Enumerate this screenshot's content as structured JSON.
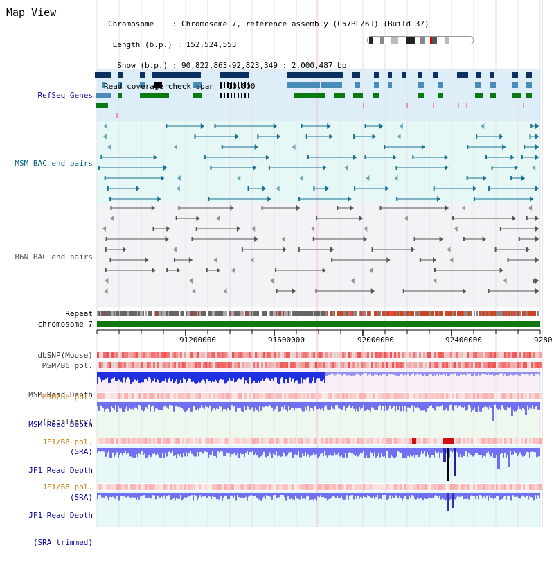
{
  "title": "Map View",
  "info": {
    "chromosome": "Chromosome    : Chromosome 7, reference assembly (C57BL/6J) (Build 37)",
    "length": " Length (b.p.) : 152,524,553",
    "show": "  Show (b.p.) : 90,822,863-92,823,349 : 2,000,487 bp",
    "coverage": "Read coverage check span : 10,000"
  },
  "tracks": {
    "refseq": "RefSeq Genes",
    "msm_bac": "MSM BAC end pairs",
    "b6n_bac": "B6N BAC end pairs",
    "repeat": "Repeat",
    "chromosome": "chromosome 7",
    "dbsnp": "dbSNP(Mouse)",
    "msm_pol": "MSM/B6 pol.",
    "msm_depth_cap_1": "MSM Read Depth",
    "msm_depth_cap_2": "(Capillary)",
    "msm_pol2": "MSM/B6 pol.",
    "msm_depth_sra_1": "MSM Read Depth",
    "msm_depth_sra_2": "(SRA)",
    "jf1_pol": "JF1/B6 pol.",
    "jf1_depth_1": "JF1 Read Depth",
    "jf1_depth_2": "(SRA)",
    "jf1_pol2": "JF1/B6 pol.",
    "jf1_trim_1": "JF1 Read Depth",
    "jf1_trim_2": "(SRA trimmed)"
  },
  "axis": {
    "ticks": [
      "91200000",
      "91600000",
      "92000000",
      "92400000",
      "9280"
    ]
  },
  "colors": {
    "refseq_bg": "#ddeef8",
    "msm_bac_bg": "#e6f8f6",
    "b6n_bac_bg": "#f3f3f6",
    "gene_dark": "#0c3060",
    "gene_mid": "#4a8cb8",
    "gene_green": "#0a7a10",
    "msm_line": "#1a7090",
    "b6n_line": "#555555",
    "chromosome": "#117711",
    "depth_blue": "#2030e0",
    "depth_light": "#7070f0",
    "label_navy": "#000099",
    "label_orange": "#cc7700",
    "label_teal": "#006080"
  }
}
